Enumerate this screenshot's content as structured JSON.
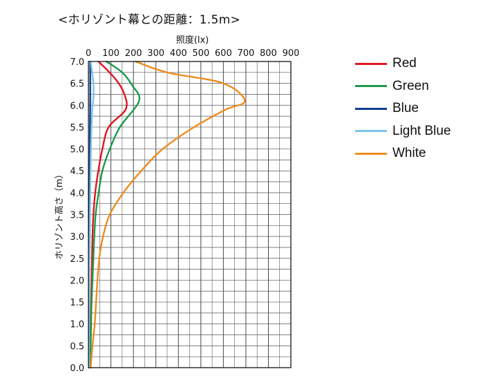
{
  "title": "<ホリゾント幕との距離：1.5m>",
  "chart_data": {
    "type": "line",
    "xlabel": "照度(lx)",
    "ylabel": "ホリゾント高さ（m）",
    "xlim": [
      0,
      900
    ],
    "ylim": [
      0,
      7.0
    ],
    "x_ticks": [
      "0",
      "100",
      "200",
      "300",
      "400",
      "500",
      "600",
      "700",
      "800",
      "900"
    ],
    "y_ticks": [
      "0.0",
      "0.5",
      "1.0",
      "1.5",
      "2.0",
      "2.5",
      "3.0",
      "3.5",
      "4.0",
      "4.5",
      "5.0",
      "5.5",
      "6.0",
      "6.5",
      "7.0"
    ],
    "grid": true,
    "legend": "right",
    "series": [
      {
        "name": "Red",
        "color": "#e0151f",
        "points": [
          [
            8,
            0
          ],
          [
            9,
            0.5
          ],
          [
            10,
            1.0
          ],
          [
            12,
            1.5
          ],
          [
            14,
            2.0
          ],
          [
            16,
            2.5
          ],
          [
            18,
            3.0
          ],
          [
            22,
            3.5
          ],
          [
            30,
            4.0
          ],
          [
            44,
            4.5
          ],
          [
            62,
            5.0
          ],
          [
            90,
            5.5
          ],
          [
            165,
            5.9
          ],
          [
            160,
            6.25
          ],
          [
            120,
            6.6
          ],
          [
            45,
            7.0
          ]
        ]
      },
      {
        "name": "Green",
        "color": "#1a9a4a",
        "points": [
          [
            10,
            0
          ],
          [
            10,
            0.5
          ],
          [
            12,
            1.0
          ],
          [
            14,
            1.5
          ],
          [
            18,
            2.0
          ],
          [
            22,
            2.5
          ],
          [
            26,
            3.0
          ],
          [
            32,
            3.5
          ],
          [
            45,
            4.0
          ],
          [
            62,
            4.5
          ],
          [
            95,
            5.0
          ],
          [
            140,
            5.5
          ],
          [
            225,
            6.1
          ],
          [
            195,
            6.45
          ],
          [
            150,
            6.75
          ],
          [
            80,
            7.0
          ]
        ]
      },
      {
        "name": "Blue",
        "color": "#0b3d91",
        "points": [
          [
            2,
            0
          ],
          [
            2,
            1.0
          ],
          [
            3,
            2.0
          ],
          [
            4,
            3.0
          ],
          [
            5,
            4.0
          ],
          [
            6,
            5.0
          ],
          [
            8,
            6.0
          ],
          [
            8,
            7.0
          ]
        ]
      },
      {
        "name": "Light Blue",
        "color": "#7cc4ea",
        "points": [
          [
            3,
            0
          ],
          [
            3,
            1.0
          ],
          [
            4,
            2.0
          ],
          [
            6,
            3.0
          ],
          [
            8,
            4.0
          ],
          [
            11,
            5.0
          ],
          [
            16,
            5.8
          ],
          [
            22,
            6.2
          ],
          [
            22,
            6.5
          ],
          [
            10,
            7.0
          ]
        ]
      },
      {
        "name": "White",
        "color": "#ef8b1e",
        "points": [
          [
            10,
            0
          ],
          [
            18,
            0.5
          ],
          [
            28,
            1.0
          ],
          [
            34,
            1.5
          ],
          [
            40,
            2.0
          ],
          [
            48,
            2.5
          ],
          [
            65,
            3.0
          ],
          [
            95,
            3.5
          ],
          [
            155,
            4.0
          ],
          [
            235,
            4.5
          ],
          [
            330,
            5.0
          ],
          [
            470,
            5.5
          ],
          [
            610,
            5.9
          ],
          [
            695,
            6.1
          ],
          [
            600,
            6.5
          ],
          [
            350,
            6.75
          ],
          [
            210,
            7.0
          ]
        ]
      }
    ]
  }
}
